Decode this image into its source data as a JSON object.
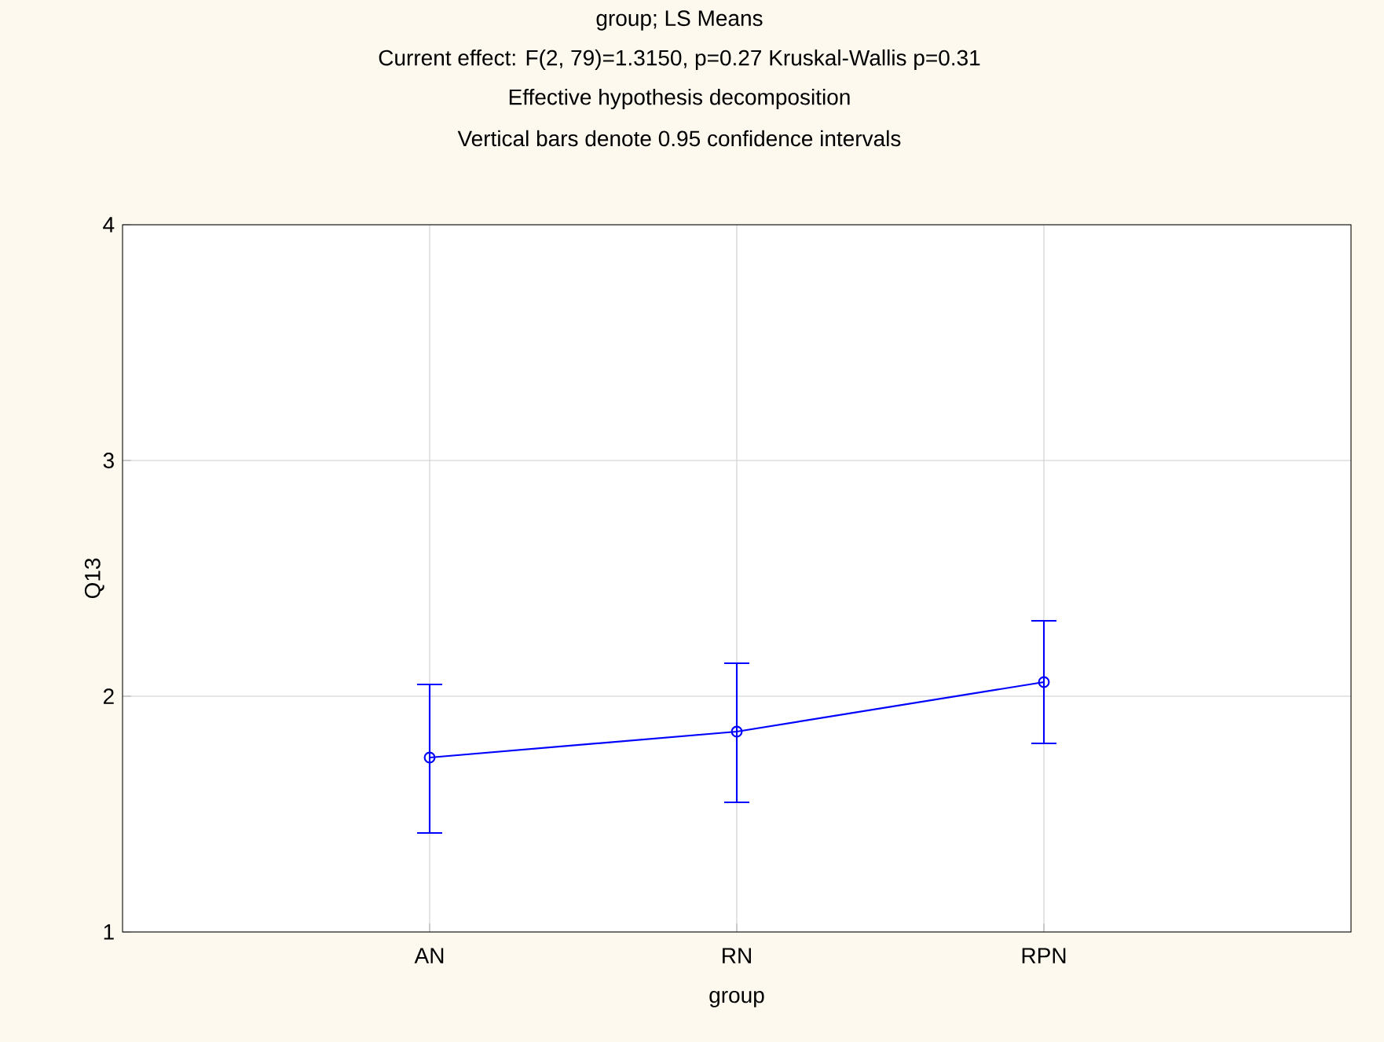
{
  "chart_data": {
    "type": "line",
    "title": "group; LS Means",
    "subtitle": "Current effect: F(2, 79)=1.3150, p=0.27 Kruskal-Wallis p=0.31",
    "annotations": [
      "Effective hypothesis decomposition",
      "Vertical bars denote 0.95 confidence intervals"
    ],
    "xlabel": "group",
    "ylabel": "Q13",
    "categories": [
      "AN",
      "RN",
      "RPN"
    ],
    "series": [
      {
        "color": "#0000ff",
        "values": [
          1.74,
          1.85,
          2.06
        ],
        "errors": [
          [
            1.42,
            2.05
          ],
          [
            1.55,
            2.14
          ],
          [
            1.8,
            2.32
          ]
        ]
      }
    ],
    "ylim": [
      1,
      4
    ],
    "yticks": [
      1,
      2,
      3,
      4
    ],
    "grid": true,
    "marker": "circle",
    "line_style": "solid"
  }
}
